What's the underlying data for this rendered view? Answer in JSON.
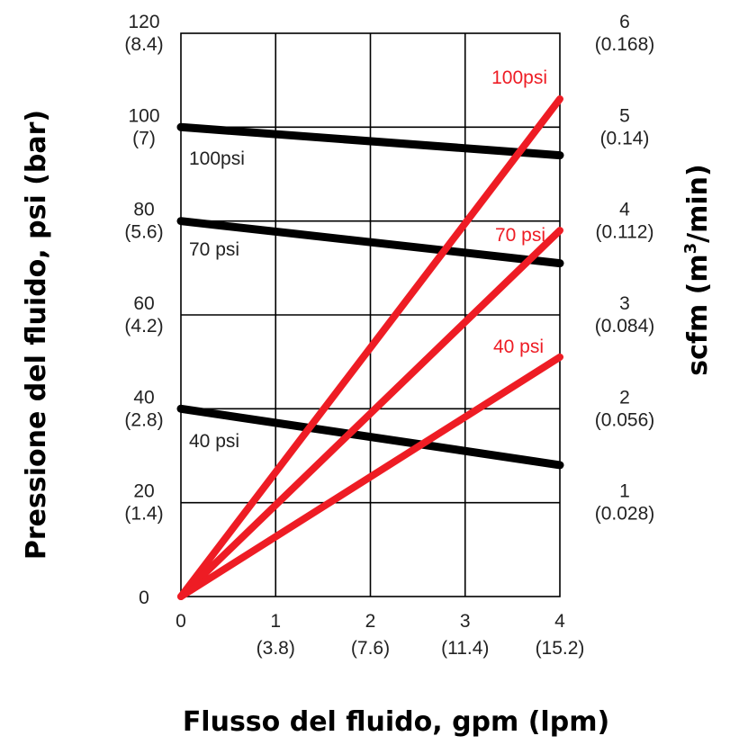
{
  "chart_data": {
    "type": "line",
    "xlabel": "Flusso del fluido, gpm (lpm)",
    "ylabel_left": "Pressione del fluido, psi (bar)",
    "ylabel_right": "scfm (m3/min)",
    "ylabel_right_parts": [
      "scfm (m",
      "3",
      "/min)"
    ],
    "xlim": [
      0,
      4
    ],
    "ylim_left": [
      0,
      120
    ],
    "ylim_right": [
      0,
      6
    ],
    "grid": true,
    "x_ticks": [
      {
        "value": 0,
        "primary": "0",
        "secondary": ""
      },
      {
        "value": 1,
        "primary": "1",
        "secondary": "(3.8)"
      },
      {
        "value": 2,
        "primary": "2",
        "secondary": "(7.6)"
      },
      {
        "value": 3,
        "primary": "3",
        "secondary": "(11.4)"
      },
      {
        "value": 4,
        "primary": "4",
        "secondary": "(15.2)"
      }
    ],
    "y_left_ticks": [
      {
        "value": 0,
        "primary": "0",
        "secondary": ""
      },
      {
        "value": 20,
        "primary": "20",
        "secondary": "(1.4)"
      },
      {
        "value": 40,
        "primary": "40",
        "secondary": "(2.8)"
      },
      {
        "value": 60,
        "primary": "60",
        "secondary": "(4.2)"
      },
      {
        "value": 80,
        "primary": "80",
        "secondary": "(5.6)"
      },
      {
        "value": 100,
        "primary": "100",
        "secondary": "(7)"
      },
      {
        "value": 120,
        "primary": "120",
        "secondary": "(8.4)"
      }
    ],
    "y_right_ticks": [
      {
        "value": 1,
        "primary": "1",
        "secondary": "(0.028)"
      },
      {
        "value": 2,
        "primary": "2",
        "secondary": "(0.056)"
      },
      {
        "value": 3,
        "primary": "3",
        "secondary": "(0.084)"
      },
      {
        "value": 4,
        "primary": "4",
        "secondary": "(0.112)"
      },
      {
        "value": 5,
        "primary": "5",
        "secondary": "(0.14)"
      },
      {
        "value": 6,
        "primary": "6",
        "secondary": "(0.168)"
      }
    ],
    "series": [
      {
        "name": "100psi",
        "axis": "left",
        "color": "#000000",
        "x": [
          0,
          4
        ],
        "y": [
          100,
          94
        ]
      },
      {
        "name": "70 psi",
        "axis": "left",
        "color": "#000000",
        "x": [
          0,
          4
        ],
        "y": [
          80,
          71
        ]
      },
      {
        "name": "40 psi",
        "axis": "left",
        "color": "#000000",
        "x": [
          0,
          4
        ],
        "y": [
          40,
          28
        ]
      },
      {
        "name": "100psi",
        "axis": "right",
        "color": "#ee1c24",
        "x": [
          0,
          4
        ],
        "y": [
          0,
          5.3
        ]
      },
      {
        "name": "70 psi",
        "axis": "right",
        "color": "#ee1c24",
        "x": [
          0,
          4
        ],
        "y": [
          0,
          3.9
        ]
      },
      {
        "name": "40 psi",
        "axis": "right",
        "color": "#ee1c24",
        "x": [
          0,
          4
        ],
        "y": [
          0,
          2.55
        ]
      }
    ]
  }
}
